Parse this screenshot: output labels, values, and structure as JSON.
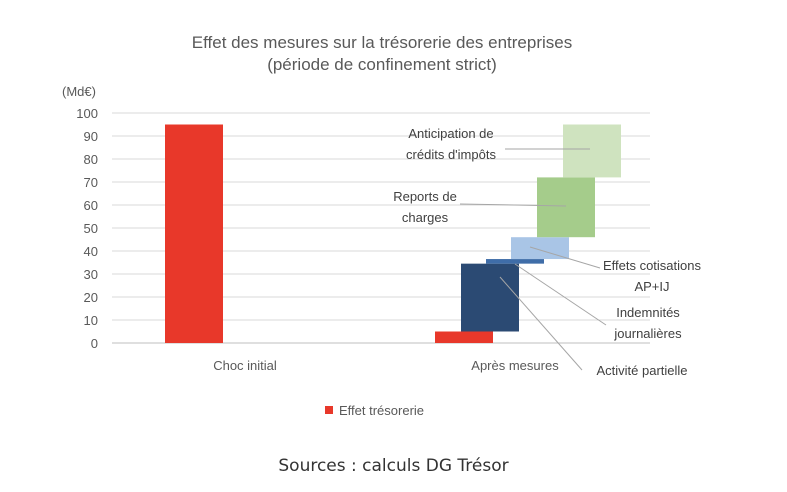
{
  "chart_data": {
    "type": "bar",
    "subtype": "waterfall",
    "title": "Effet des mesures sur la trésorerie des entreprises",
    "subtitle": "(période de confinement strict)",
    "yunit": "(Md€)",
    "ylim": [
      0,
      100
    ],
    "yticks": [
      0,
      10,
      20,
      30,
      40,
      50,
      60,
      70,
      80,
      90,
      100
    ],
    "grid": true,
    "categories": [
      "Choc initial",
      "Après mesures"
    ],
    "bars": [
      {
        "category": "Choc initial",
        "base": 0,
        "value": 95,
        "color": "#e8382a"
      },
      {
        "category": "Après mesures",
        "base": 0,
        "value": 5,
        "color": "#e8382a"
      }
    ],
    "steps": [
      {
        "label": "Activité partielle",
        "base": 5,
        "value": 29.5,
        "color": "#2b4a73"
      },
      {
        "label": "Indemnités journalières",
        "base": 34.5,
        "value": 2,
        "color": "#3f6da8"
      },
      {
        "label": "Effets cotisations AP+IJ",
        "base": 36.5,
        "value": 9.5,
        "color": "#a9c5e6"
      },
      {
        "label": "Reports de charges",
        "base": 46,
        "value": 26,
        "color": "#a5cc8b"
      },
      {
        "label": "Anticipation de crédits d'impôts",
        "base": 72,
        "value": 23,
        "color": "#cfe3bf"
      }
    ],
    "legend": {
      "label": "Effet trésorerie",
      "color": "#e8382a",
      "position": "bottom"
    }
  },
  "annotations": {
    "anticipation": [
      "Anticipation de",
      "crédits d'impôts"
    ],
    "reports": [
      "Reports de",
      "charges"
    ],
    "cotisations": [
      "Effets cotisations",
      "AP+IJ"
    ],
    "indemnites": [
      "Indemnités",
      "journalières"
    ],
    "activite": "Activité partielle"
  },
  "source": "Sources : calculs DG Trésor"
}
